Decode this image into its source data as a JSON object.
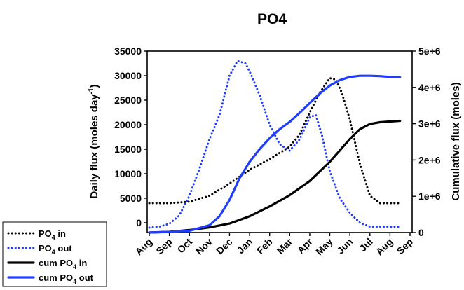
{
  "chart_data": {
    "type": "line",
    "title": "PO4",
    "ylabel": "Daily flux (moles day",
    "ylabel_sup": "-1",
    "ylabel_close": ")",
    "y2label": "Cumulative flux (moles)",
    "xlabel": "",
    "x_ticks": [
      "Aug",
      "Sep",
      "Oct",
      "Nov",
      "Dec",
      "Jan",
      "Feb",
      "Mar",
      "Apr",
      "May",
      "Jun",
      "Jul",
      "Aug",
      "Sep"
    ],
    "ylim": [
      -2000,
      35000
    ],
    "y_ticks": [
      "35000",
      "30000",
      "25000",
      "20000",
      "15000",
      "10000",
      "5000",
      "0"
    ],
    "y_tick_values": [
      35000,
      30000,
      25000,
      20000,
      15000,
      10000,
      5000,
      0
    ],
    "y2lim": [
      0,
      5000000
    ],
    "y2_ticks": [
      "5e+6",
      "4e+6",
      "3e+6",
      "2e+6",
      "1e+6",
      "0"
    ],
    "y2_tick_values": [
      5000000,
      4000000,
      3000000,
      2000000,
      1000000,
      0
    ],
    "grid": false,
    "legend_position": "bottom-left",
    "series": [
      {
        "name": "PO4 in",
        "label_main": "PO",
        "label_sub": "4",
        "label_rest": " in",
        "axis": "left",
        "style": "dotted",
        "color": "#000000",
        "x": [
          0,
          1,
          2,
          3,
          4,
          5,
          6,
          7,
          7.5,
          8,
          8.5,
          9,
          9.3,
          9.6,
          10,
          10.5,
          11,
          11.5,
          12,
          12.5
        ],
        "y": [
          4000,
          4000,
          4300,
          5500,
          8000,
          10800,
          13000,
          15500,
          18000,
          22500,
          26500,
          29500,
          29200,
          26500,
          21000,
          12000,
          5500,
          4000,
          4000,
          4000
        ]
      },
      {
        "name": "PO4 out",
        "label_main": "PO",
        "label_sub": "4",
        "label_rest": " out",
        "axis": "left",
        "style": "dotted",
        "color": "#1f3cff",
        "x": [
          0,
          0.5,
          1,
          1.5,
          2,
          2.5,
          3,
          3.5,
          4,
          4.4,
          4.8,
          5.1,
          5.5,
          6,
          6.5,
          7,
          7.5,
          8,
          8.3,
          8.6,
          9,
          9.5,
          10,
          10.5,
          11,
          11.5,
          12,
          12.5
        ],
        "y": [
          -1000,
          -800,
          -200,
          1500,
          5500,
          11000,
          17000,
          22000,
          30000,
          33000,
          32500,
          30000,
          26000,
          20000,
          16000,
          14700,
          17000,
          21500,
          22000,
          18000,
          10500,
          5000,
          2000,
          0,
          -800,
          -800,
          -800,
          -800
        ]
      },
      {
        "name": "cum PO4 in",
        "label_main": "cum PO",
        "label_sub": "4",
        "label_rest": " in",
        "axis": "right",
        "style": "solid",
        "color": "#000000",
        "x": [
          0,
          1,
          2,
          3,
          4,
          5,
          6,
          7,
          8,
          9,
          10,
          10.5,
          11,
          11.5,
          12,
          12.5
        ],
        "y": [
          0,
          20000,
          70000,
          140000,
          250000,
          450000,
          720000,
          1030000,
          1420000,
          1950000,
          2580000,
          2850000,
          2990000,
          3040000,
          3060000,
          3080000
        ]
      },
      {
        "name": "cum PO4 out",
        "label_main": "cum PO",
        "label_sub": "4",
        "label_rest": " out",
        "axis": "right",
        "style": "solid",
        "color": "#1f3cff",
        "x": [
          0,
          1,
          2,
          3,
          3.5,
          4,
          4.5,
          5,
          5.5,
          6,
          6.5,
          7,
          7.5,
          8,
          8.5,
          9,
          9.5,
          10,
          10.5,
          11,
          11.5,
          12,
          12.5
        ],
        "y": [
          0,
          20000,
          50000,
          200000,
          450000,
          900000,
          1500000,
          1950000,
          2300000,
          2600000,
          2850000,
          3050000,
          3300000,
          3570000,
          3830000,
          4050000,
          4200000,
          4290000,
          4320000,
          4320000,
          4310000,
          4290000,
          4280000
        ]
      }
    ]
  }
}
